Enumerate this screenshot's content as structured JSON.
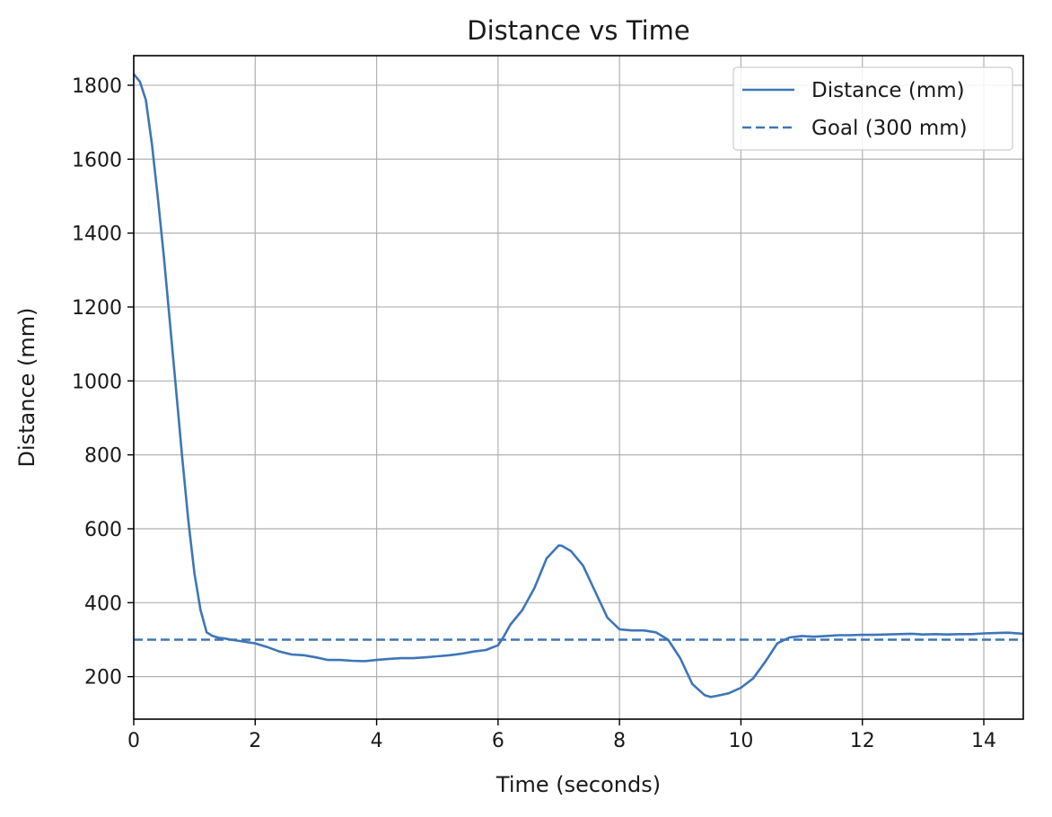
{
  "chart_data": {
    "type": "line",
    "title": "Distance vs Time",
    "xlabel": "Time (seconds)",
    "ylabel": "Distance (mm)",
    "xlim": [
      0,
      14.65
    ],
    "ylim": [
      85,
      1880
    ],
    "xticks": [
      0,
      2,
      4,
      6,
      8,
      10,
      12,
      14
    ],
    "yticks": [
      200,
      400,
      600,
      800,
      1000,
      1200,
      1400,
      1600,
      1800
    ],
    "grid": true,
    "legend_position": "top-right",
    "colors": {
      "series": "#3d76b7",
      "grid": "#b0b0b0",
      "axis": "#000000"
    },
    "series": [
      {
        "name": "Distance (mm)",
        "style": "solid",
        "x": [
          0,
          0.1,
          0.2,
          0.3,
          0.4,
          0.5,
          0.6,
          0.7,
          0.8,
          0.9,
          1.0,
          1.1,
          1.2,
          1.3,
          1.4,
          1.5,
          1.6,
          1.8,
          2.0,
          2.2,
          2.4,
          2.6,
          2.8,
          3.0,
          3.2,
          3.4,
          3.6,
          3.8,
          4.0,
          4.2,
          4.4,
          4.6,
          4.8,
          5.0,
          5.2,
          5.4,
          5.6,
          5.8,
          6.0,
          6.1,
          6.2,
          6.4,
          6.6,
          6.8,
          7.0,
          7.05,
          7.2,
          7.4,
          7.6,
          7.8,
          8.0,
          8.2,
          8.4,
          8.6,
          8.8,
          9.0,
          9.2,
          9.4,
          9.5,
          9.6,
          9.8,
          10.0,
          10.2,
          10.4,
          10.6,
          10.8,
          11.0,
          11.2,
          11.4,
          11.6,
          11.8,
          12.0,
          12.2,
          12.4,
          12.6,
          12.8,
          13.0,
          13.2,
          13.4,
          13.6,
          13.8,
          14.0,
          14.2,
          14.4,
          14.65
        ],
        "y": [
          1830,
          1810,
          1760,
          1640,
          1490,
          1330,
          1150,
          970,
          790,
          620,
          480,
          380,
          320,
          310,
          305,
          303,
          300,
          295,
          290,
          280,
          268,
          260,
          258,
          252,
          245,
          245,
          243,
          242,
          245,
          248,
          250,
          250,
          252,
          255,
          258,
          262,
          268,
          272,
          285,
          310,
          340,
          380,
          440,
          520,
          555,
          554,
          540,
          500,
          430,
          360,
          328,
          325,
          325,
          320,
          300,
          250,
          180,
          150,
          145,
          148,
          155,
          170,
          195,
          240,
          290,
          306,
          310,
          308,
          310,
          312,
          312,
          313,
          313,
          314,
          315,
          316,
          314,
          315,
          314,
          315,
          315,
          317,
          318,
          319,
          316
        ]
      },
      {
        "name": "Goal (300 mm)",
        "style": "dashed",
        "x": [
          0,
          14.65
        ],
        "y": [
          300,
          300
        ]
      }
    ]
  }
}
